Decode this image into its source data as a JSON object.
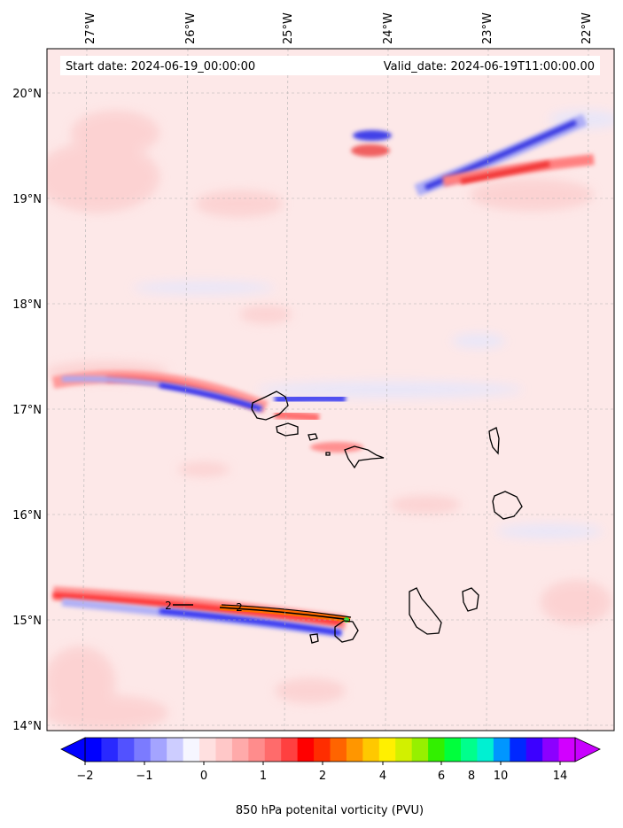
{
  "header": {
    "start_date": "Start date: 2024-06-19_00:00:00",
    "valid_date": "Valid_date: 2024-06-19T11:00:00.00"
  },
  "map": {
    "longitude_labels": [
      "27°W",
      "26°W",
      "25°W",
      "24°W",
      "23°W",
      "22°W"
    ],
    "latitude_labels": [
      "20°N",
      "19°N",
      "18°N",
      "17°N",
      "16°N",
      "15°N",
      "14°N"
    ],
    "contour_labels": [
      "2",
      "2"
    ],
    "features": [
      "positive-vorticity-band",
      "negative-vorticity-band",
      "island-coastlines",
      "storm-track-contour"
    ]
  },
  "colorbar": {
    "tick_labels": [
      "−2",
      "−1",
      "0",
      "1",
      "2",
      "4",
      "6",
      "8",
      "10",
      "14"
    ],
    "label": "850 hPa potenital vorticity (PVU)",
    "colors": [
      "#0000ff",
      "#2929ff",
      "#5252ff",
      "#7b7bff",
      "#a4a4ff",
      "#cdcdff",
      "#f6f6ff",
      "#ffe0e0",
      "#ffc8c8",
      "#ffaaaa",
      "#ff8c8c",
      "#ff6b6b",
      "#ff4040",
      "#ff0000",
      "#ff2d00",
      "#ff6400",
      "#ff9600",
      "#ffc800",
      "#fff000",
      "#d2f000",
      "#96f000",
      "#32f000",
      "#00ff3c",
      "#00ff8c",
      "#00f0d2",
      "#0096ff",
      "#0028ff",
      "#3c00ff",
      "#8c00ff",
      "#d200ff"
    ]
  },
  "palette": {
    "background_fill": "#fde8e8",
    "coast": "#000000",
    "grid": "#b0b0b0"
  }
}
